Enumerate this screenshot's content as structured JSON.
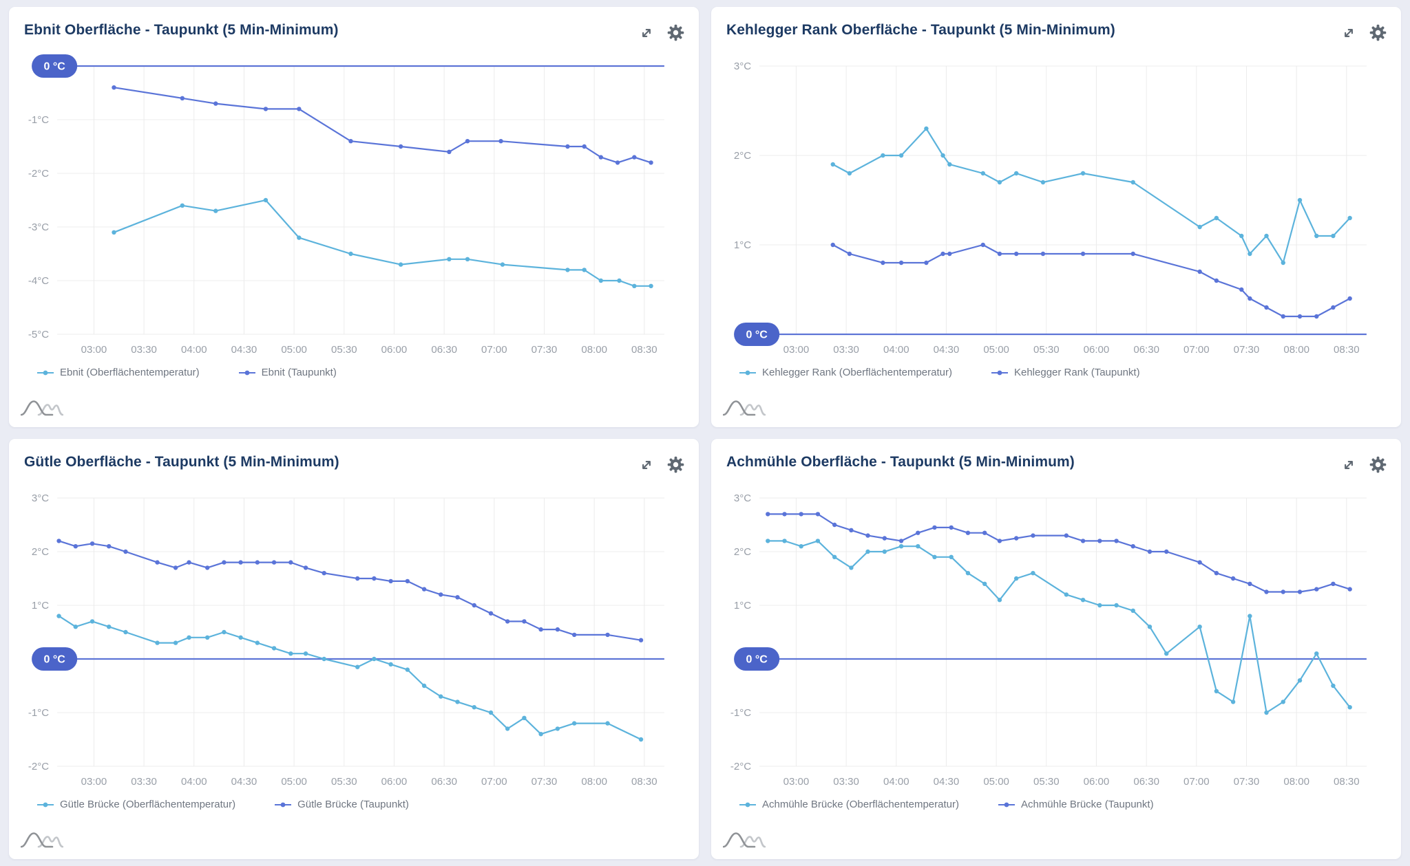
{
  "theme": {
    "page_background": "#eaecf4",
    "card_background": "#ffffff",
    "title_color": "#1d3a63",
    "tick_color": "#989ea7",
    "grid_color": "#ececec",
    "zero_line_color": "#5d74d6",
    "badge_color": "#4b64c9",
    "badge_text_color": "#ffffff",
    "legend_text_color": "#6f7681",
    "icon_color": "#5f6872",
    "surface_color": "#5cb3dc",
    "dewpoint_color": "#5a74d8"
  },
  "icons": {
    "expand": "expand-icon",
    "gear": "gear-icon",
    "logo": "hills-logo-icon"
  },
  "chart_data": [
    {
      "type": "line",
      "title": "Ebnit Oberfläche - Taupunkt (5 Min-Minimum)",
      "zero_badge_label": "0 °C",
      "xlim": [
        "02:38",
        "08:42"
      ],
      "ylim": [
        -5,
        0
      ],
      "grid": true,
      "legend_position": "bottom",
      "x_ticks": [
        "03:00",
        "03:30",
        "04:00",
        "04:30",
        "05:00",
        "05:30",
        "06:00",
        "06:30",
        "07:00",
        "07:30",
        "08:00",
        "08:30"
      ],
      "y_ticks": [
        {
          "value": -1,
          "label": "-1°C"
        },
        {
          "value": -2,
          "label": "-2°C"
        },
        {
          "value": -3,
          "label": "-3°C"
        },
        {
          "value": -4,
          "label": "-4°C"
        },
        {
          "value": -5,
          "label": "-5°C"
        }
      ],
      "series": [
        {
          "name": "Ebnit (Oberflächentemperatur)",
          "color": "surface_color",
          "points": [
            [
              "03:12",
              -3.1
            ],
            [
              "03:53",
              -2.6
            ],
            [
              "04:13",
              -2.7
            ],
            [
              "04:43",
              -2.5
            ],
            [
              "05:03",
              -3.2
            ],
            [
              "05:34",
              -3.5
            ],
            [
              "06:04",
              -3.7
            ],
            [
              "06:33",
              -3.6
            ],
            [
              "06:44",
              -3.6
            ],
            [
              "07:05",
              -3.7
            ],
            [
              "07:44",
              -3.8
            ],
            [
              "07:54",
              -3.8
            ],
            [
              "08:04",
              -4.0
            ],
            [
              "08:15",
              -4.0
            ],
            [
              "08:24",
              -4.1
            ],
            [
              "08:34",
              -4.1
            ]
          ]
        },
        {
          "name": "Ebnit (Taupunkt)",
          "color": "dewpoint_color",
          "points": [
            [
              "03:12",
              -0.4
            ],
            [
              "03:53",
              -0.6
            ],
            [
              "04:13",
              -0.7
            ],
            [
              "04:43",
              -0.8
            ],
            [
              "05:03",
              -0.8
            ],
            [
              "05:34",
              -1.4
            ],
            [
              "06:04",
              -1.5
            ],
            [
              "06:33",
              -1.6
            ],
            [
              "06:44",
              -1.4
            ],
            [
              "07:04",
              -1.4
            ],
            [
              "07:44",
              -1.5
            ],
            [
              "07:54",
              -1.5
            ],
            [
              "08:04",
              -1.7
            ],
            [
              "08:14",
              -1.8
            ],
            [
              "08:24",
              -1.7
            ],
            [
              "08:34",
              -1.8
            ]
          ]
        }
      ]
    },
    {
      "type": "line",
      "title": "Kehlegger Rank Oberfläche - Taupunkt (5 Min-Minimum)",
      "zero_badge_label": "0 °C",
      "xlim": [
        "02:38",
        "08:42"
      ],
      "ylim": [
        0,
        3
      ],
      "grid": true,
      "legend_position": "bottom",
      "x_ticks": [
        "03:00",
        "03:30",
        "04:00",
        "04:30",
        "05:00",
        "05:30",
        "06:00",
        "06:30",
        "07:00",
        "07:30",
        "08:00",
        "08:30"
      ],
      "y_ticks": [
        {
          "value": 3,
          "label": "3°C"
        },
        {
          "value": 2,
          "label": "2°C"
        },
        {
          "value": 1,
          "label": "1°C"
        }
      ],
      "series": [
        {
          "name": "Kehlegger Rank (Oberflächentemperatur)",
          "color": "surface_color",
          "points": [
            [
              "03:22",
              1.9
            ],
            [
              "03:32",
              1.8
            ],
            [
              "03:52",
              2.0
            ],
            [
              "04:03",
              2.0
            ],
            [
              "04:18",
              2.3
            ],
            [
              "04:28",
              2.0
            ],
            [
              "04:32",
              1.9
            ],
            [
              "04:52",
              1.8
            ],
            [
              "05:02",
              1.7
            ],
            [
              "05:12",
              1.8
            ],
            [
              "05:28",
              1.7
            ],
            [
              "05:52",
              1.8
            ],
            [
              "06:22",
              1.7
            ],
            [
              "07:02",
              1.2
            ],
            [
              "07:12",
              1.3
            ],
            [
              "07:27",
              1.1
            ],
            [
              "07:32",
              0.9
            ],
            [
              "07:42",
              1.1
            ],
            [
              "07:52",
              0.8
            ],
            [
              "08:02",
              1.5
            ],
            [
              "08:12",
              1.1
            ],
            [
              "08:22",
              1.1
            ],
            [
              "08:32",
              1.3
            ]
          ]
        },
        {
          "name": "Kehlegger Rank (Taupunkt)",
          "color": "dewpoint_color",
          "points": [
            [
              "03:22",
              1.0
            ],
            [
              "03:32",
              0.9
            ],
            [
              "03:52",
              0.8
            ],
            [
              "04:03",
              0.8
            ],
            [
              "04:18",
              0.8
            ],
            [
              "04:28",
              0.9
            ],
            [
              "04:32",
              0.9
            ],
            [
              "04:52",
              1.0
            ],
            [
              "05:02",
              0.9
            ],
            [
              "05:12",
              0.9
            ],
            [
              "05:28",
              0.9
            ],
            [
              "05:52",
              0.9
            ],
            [
              "06:22",
              0.9
            ],
            [
              "07:02",
              0.7
            ],
            [
              "07:12",
              0.6
            ],
            [
              "07:27",
              0.5
            ],
            [
              "07:32",
              0.4
            ],
            [
              "07:42",
              0.3
            ],
            [
              "07:52",
              0.2
            ],
            [
              "08:02",
              0.2
            ],
            [
              "08:12",
              0.2
            ],
            [
              "08:22",
              0.3
            ],
            [
              "08:32",
              0.4
            ]
          ]
        }
      ]
    },
    {
      "type": "line",
      "title": "Gütle Oberfläche - Taupunkt (5 Min-Minimum)",
      "zero_badge_label": "0 °C",
      "xlim": [
        "02:38",
        "08:42"
      ],
      "ylim": [
        -2,
        3
      ],
      "grid": true,
      "legend_position": "bottom",
      "x_ticks": [
        "03:00",
        "03:30",
        "04:00",
        "04:30",
        "05:00",
        "05:30",
        "06:00",
        "06:30",
        "07:00",
        "07:30",
        "08:00",
        "08:30"
      ],
      "y_ticks": [
        {
          "value": 3,
          "label": "3°C"
        },
        {
          "value": 2,
          "label": "2°C"
        },
        {
          "value": 1,
          "label": "1°C"
        },
        {
          "value": -1,
          "label": "-1°C"
        },
        {
          "value": -2,
          "label": "-2°C"
        }
      ],
      "series": [
        {
          "name": "Gütle Brücke (Oberflächentemperatur)",
          "color": "surface_color",
          "points": [
            [
              "02:39",
              0.8
            ],
            [
              "02:49",
              0.6
            ],
            [
              "02:59",
              0.7
            ],
            [
              "03:09",
              0.6
            ],
            [
              "03:19",
              0.5
            ],
            [
              "03:38",
              0.3
            ],
            [
              "03:49",
              0.3
            ],
            [
              "03:57",
              0.4
            ],
            [
              "04:08",
              0.4
            ],
            [
              "04:18",
              0.5
            ],
            [
              "04:28",
              0.4
            ],
            [
              "04:38",
              0.3
            ],
            [
              "04:48",
              0.2
            ],
            [
              "04:58",
              0.1
            ],
            [
              "05:07",
              0.1
            ],
            [
              "05:18",
              0.0
            ],
            [
              "05:38",
              -0.15
            ],
            [
              "05:48",
              0.0
            ],
            [
              "05:58",
              -0.1
            ],
            [
              "06:08",
              -0.2
            ],
            [
              "06:18",
              -0.5
            ],
            [
              "06:28",
              -0.7
            ],
            [
              "06:38",
              -0.8
            ],
            [
              "06:48",
              -0.9
            ],
            [
              "06:58",
              -1.0
            ],
            [
              "07:08",
              -1.3
            ],
            [
              "07:18",
              -1.1
            ],
            [
              "07:28",
              -1.4
            ],
            [
              "07:38",
              -1.3
            ],
            [
              "07:48",
              -1.2
            ],
            [
              "08:08",
              -1.2
            ],
            [
              "08:28",
              -1.5
            ]
          ]
        },
        {
          "name": "Gütle Brücke (Taupunkt)",
          "color": "dewpoint_color",
          "points": [
            [
              "02:39",
              2.2
            ],
            [
              "02:49",
              2.1
            ],
            [
              "02:59",
              2.15
            ],
            [
              "03:09",
              2.1
            ],
            [
              "03:19",
              2.0
            ],
            [
              "03:38",
              1.8
            ],
            [
              "03:49",
              1.7
            ],
            [
              "03:57",
              1.8
            ],
            [
              "04:08",
              1.7
            ],
            [
              "04:18",
              1.8
            ],
            [
              "04:28",
              1.8
            ],
            [
              "04:38",
              1.8
            ],
            [
              "04:48",
              1.8
            ],
            [
              "04:58",
              1.8
            ],
            [
              "05:07",
              1.7
            ],
            [
              "05:18",
              1.6
            ],
            [
              "05:38",
              1.5
            ],
            [
              "05:48",
              1.5
            ],
            [
              "05:58",
              1.45
            ],
            [
              "06:08",
              1.45
            ],
            [
              "06:18",
              1.3
            ],
            [
              "06:28",
              1.2
            ],
            [
              "06:38",
              1.15
            ],
            [
              "06:48",
              1.0
            ],
            [
              "06:58",
              0.85
            ],
            [
              "07:08",
              0.7
            ],
            [
              "07:18",
              0.7
            ],
            [
              "07:28",
              0.55
            ],
            [
              "07:38",
              0.55
            ],
            [
              "07:48",
              0.45
            ],
            [
              "08:08",
              0.45
            ],
            [
              "08:28",
              0.35
            ]
          ]
        }
      ]
    },
    {
      "type": "line",
      "title": "Achmühle Oberfläche - Taupunkt (5 Min-Minimum)",
      "zero_badge_label": "0 °C",
      "xlim": [
        "02:38",
        "08:42"
      ],
      "ylim": [
        -2,
        3
      ],
      "grid": true,
      "legend_position": "bottom",
      "x_ticks": [
        "03:00",
        "03:30",
        "04:00",
        "04:30",
        "05:00",
        "05:30",
        "06:00",
        "06:30",
        "07:00",
        "07:30",
        "08:00",
        "08:30"
      ],
      "y_ticks": [
        {
          "value": 3,
          "label": "3°C"
        },
        {
          "value": 2,
          "label": "2°C"
        },
        {
          "value": 1,
          "label": "1°C"
        },
        {
          "value": -1,
          "label": "-1°C"
        },
        {
          "value": -2,
          "label": "-2°C"
        }
      ],
      "series": [
        {
          "name": "Achmühle Brücke (Oberflächentemperatur)",
          "color": "surface_color",
          "points": [
            [
              "02:43",
              2.2
            ],
            [
              "02:53",
              2.2
            ],
            [
              "03:03",
              2.1
            ],
            [
              "03:13",
              2.2
            ],
            [
              "03:23",
              1.9
            ],
            [
              "03:33",
              1.7
            ],
            [
              "03:43",
              2.0
            ],
            [
              "03:53",
              2.0
            ],
            [
              "04:03",
              2.1
            ],
            [
              "04:13",
              2.1
            ],
            [
              "04:23",
              1.9
            ],
            [
              "04:33",
              1.9
            ],
            [
              "04:43",
              1.6
            ],
            [
              "04:53",
              1.4
            ],
            [
              "05:02",
              1.1
            ],
            [
              "05:12",
              1.5
            ],
            [
              "05:22",
              1.6
            ],
            [
              "05:42",
              1.2
            ],
            [
              "05:52",
              1.1
            ],
            [
              "06:02",
              1.0
            ],
            [
              "06:12",
              1.0
            ],
            [
              "06:22",
              0.9
            ],
            [
              "06:32",
              0.6
            ],
            [
              "06:42",
              0.1
            ],
            [
              "07:02",
              0.6
            ],
            [
              "07:12",
              -0.6
            ],
            [
              "07:22",
              -0.8
            ],
            [
              "07:32",
              0.8
            ],
            [
              "07:42",
              -1.0
            ],
            [
              "07:52",
              -0.8
            ],
            [
              "08:02",
              -0.4
            ],
            [
              "08:12",
              0.1
            ],
            [
              "08:22",
              -0.5
            ],
            [
              "08:32",
              -0.9
            ]
          ]
        },
        {
          "name": "Achmühle Brücke (Taupunkt)",
          "color": "dewpoint_color",
          "points": [
            [
              "02:43",
              2.7
            ],
            [
              "02:53",
              2.7
            ],
            [
              "03:03",
              2.7
            ],
            [
              "03:13",
              2.7
            ],
            [
              "03:23",
              2.5
            ],
            [
              "03:33",
              2.4
            ],
            [
              "03:43",
              2.3
            ],
            [
              "03:53",
              2.25
            ],
            [
              "04:03",
              2.2
            ],
            [
              "04:13",
              2.35
            ],
            [
              "04:23",
              2.45
            ],
            [
              "04:33",
              2.45
            ],
            [
              "04:43",
              2.35
            ],
            [
              "04:53",
              2.35
            ],
            [
              "05:02",
              2.2
            ],
            [
              "05:12",
              2.25
            ],
            [
              "05:22",
              2.3
            ],
            [
              "05:42",
              2.3
            ],
            [
              "05:52",
              2.2
            ],
            [
              "06:02",
              2.2
            ],
            [
              "06:12",
              2.2
            ],
            [
              "06:22",
              2.1
            ],
            [
              "06:32",
              2.0
            ],
            [
              "06:42",
              2.0
            ],
            [
              "07:02",
              1.8
            ],
            [
              "07:12",
              1.6
            ],
            [
              "07:22",
              1.5
            ],
            [
              "07:32",
              1.4
            ],
            [
              "07:42",
              1.25
            ],
            [
              "07:52",
              1.25
            ],
            [
              "08:02",
              1.25
            ],
            [
              "08:12",
              1.3
            ],
            [
              "08:22",
              1.4
            ],
            [
              "08:32",
              1.3
            ]
          ]
        }
      ]
    }
  ]
}
